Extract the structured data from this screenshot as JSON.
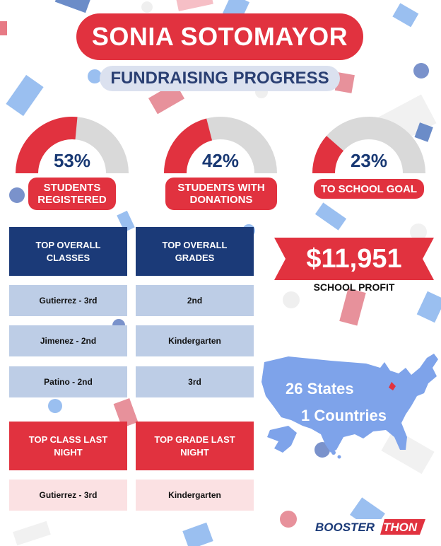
{
  "header": {
    "title": "SONIA SOTOMAYOR",
    "subtitle": "FUNDRAISING PROGRESS"
  },
  "colors": {
    "red": "#e1323f",
    "navy": "#1b3a78",
    "gray": "#d9d9d9",
    "light_blue": "#bdcde6",
    "pink": "#fbe1e3",
    "map_blue": "#7ea3ea"
  },
  "gauges": [
    {
      "percent_text": "53%",
      "fraction": 0.53,
      "label": "STUDENTS REGISTERED"
    },
    {
      "percent_text": "42%",
      "fraction": 0.42,
      "label": "STUDENTS WITH DONATIONS"
    },
    {
      "percent_text": "23%",
      "fraction": 0.23,
      "label": "TO SCHOOL GOAL"
    }
  ],
  "tables": {
    "top_overall_classes": {
      "header": "TOP OVERALL CLASSES",
      "rows": [
        "Gutierrez - 3rd",
        "Jimenez - 2nd",
        "Patino - 2nd"
      ]
    },
    "top_overall_grades": {
      "header": "TOP OVERALL GRADES",
      "rows": [
        "2nd",
        "Kindergarten",
        "3rd"
      ]
    },
    "top_class_last_night": {
      "header": "TOP CLASS LAST NIGHT",
      "row": "Gutierrez - 3rd"
    },
    "top_grade_last_night": {
      "header": "TOP GRADE LAST NIGHT",
      "row": "Kindergarten"
    }
  },
  "profit": {
    "amount": "$11,951",
    "label": "SCHOOL PROFIT"
  },
  "map": {
    "states_text": "26 States",
    "countries_text": "1 Countries",
    "icon": "usa-map-icon"
  },
  "logo": {
    "text": "BOOSTERTHON"
  }
}
